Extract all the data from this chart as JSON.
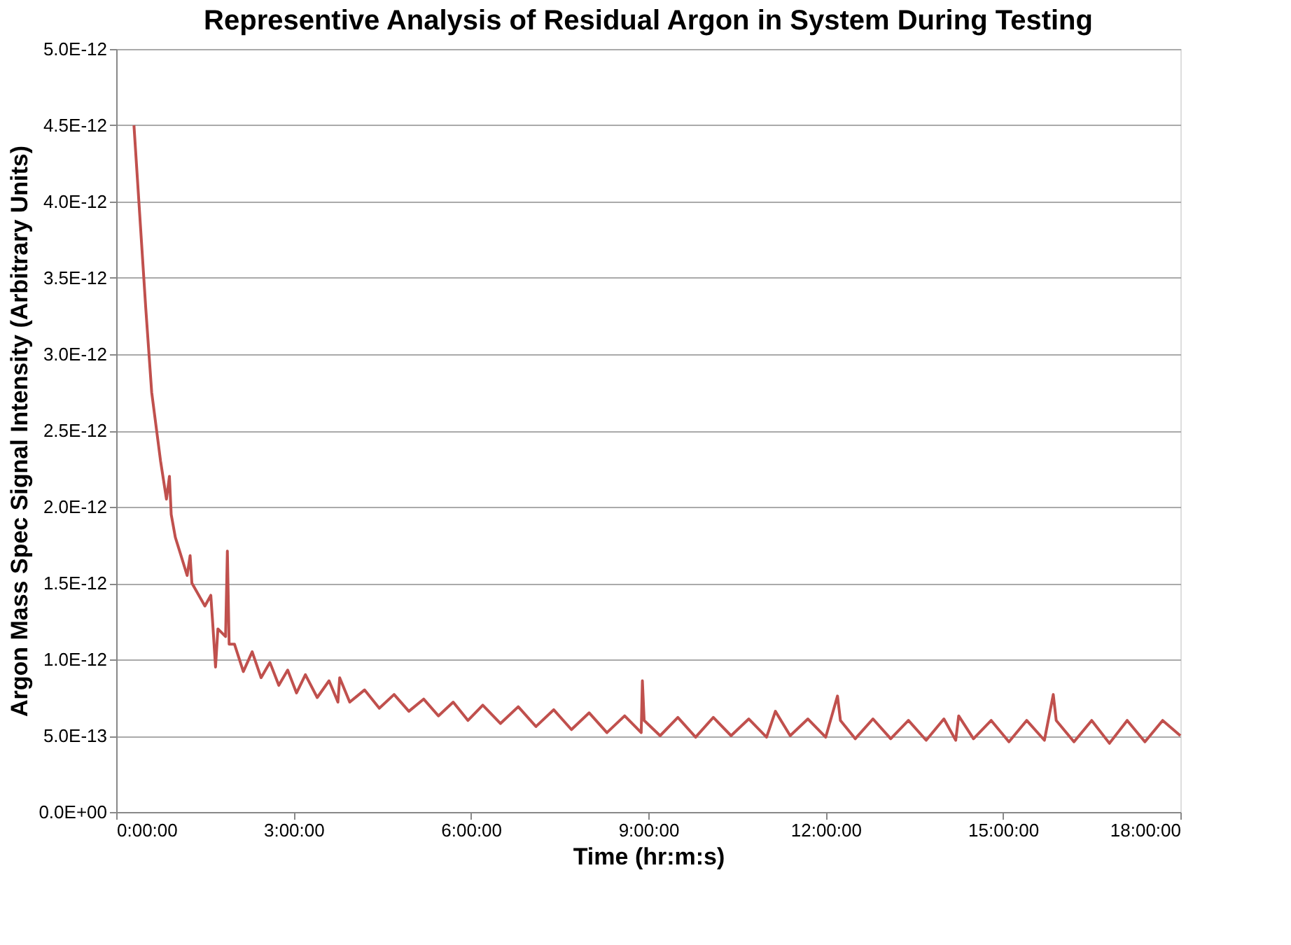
{
  "chart_data": {
    "type": "line",
    "title": "Representive Analysis of Residual Argon in System During Testing",
    "xlabel": "Time (hr:m:s)",
    "ylabel": "Argon Mass Spec Signal Intensity  (Arbitrary Units)",
    "xlim": [
      0,
      18
    ],
    "xticks": [
      {
        "value": 0,
        "label": "0:00:00"
      },
      {
        "value": 3,
        "label": "3:00:00"
      },
      {
        "value": 6,
        "label": "6:00:00"
      },
      {
        "value": 9,
        "label": "9:00:00"
      },
      {
        "value": 12,
        "label": "12:00:00"
      },
      {
        "value": 15,
        "label": "15:00:00"
      },
      {
        "value": 18,
        "label": "18:00:00"
      }
    ],
    "ylim": [
      0,
      5e-12
    ],
    "yticks": [
      {
        "value": 0,
        "label": "0.0E+00"
      },
      {
        "value": 5e-13,
        "label": "5.0E-13"
      },
      {
        "value": 1e-12,
        "label": "1.0E-12"
      },
      {
        "value": 1.5e-12,
        "label": "1.5E-12"
      },
      {
        "value": 2e-12,
        "label": "2.0E-12"
      },
      {
        "value": 2.5e-12,
        "label": "2.5E-12"
      },
      {
        "value": 3e-12,
        "label": "3.0E-12"
      },
      {
        "value": 3.5e-12,
        "label": "3.5E-12"
      },
      {
        "value": 4e-12,
        "label": "4.0E-12"
      },
      {
        "value": 4.5e-12,
        "label": "4.5E-12"
      },
      {
        "value": 5e-12,
        "label": "5.0E-12"
      }
    ],
    "grid": "y",
    "marker": "none",
    "line_style": "solid",
    "x": [
      0.3,
      0.4,
      0.5,
      0.6,
      0.75,
      0.85,
      0.9,
      0.93,
      1.0,
      1.2,
      1.25,
      1.28,
      1.5,
      1.6,
      1.63,
      1.68,
      1.72,
      1.85,
      1.88,
      1.91,
      2.0,
      2.15,
      2.3,
      2.45,
      2.6,
      2.75,
      2.9,
      3.05,
      3.2,
      3.4,
      3.6,
      3.75,
      3.78,
      3.95,
      4.2,
      4.45,
      4.7,
      4.95,
      5.2,
      5.45,
      5.7,
      5.95,
      6.2,
      6.5,
      6.8,
      7.1,
      7.4,
      7.7,
      8.0,
      8.3,
      8.6,
      8.88,
      8.9,
      8.93,
      9.2,
      9.5,
      9.8,
      10.1,
      10.4,
      10.7,
      11.0,
      11.15,
      11.4,
      11.7,
      12.0,
      12.2,
      12.25,
      12.5,
      12.8,
      13.1,
      13.4,
      13.7,
      14.0,
      14.2,
      14.25,
      14.5,
      14.8,
      15.1,
      15.4,
      15.7,
      15.85,
      15.9,
      16.2,
      16.5,
      16.8,
      17.1,
      17.4,
      17.7,
      18.0
    ],
    "series": [
      {
        "color": "#c0504d",
        "values": [
          4.5e-12,
          3.9e-12,
          3.3e-12,
          2.75e-12,
          2.3e-12,
          2.05e-12,
          2.2e-12,
          1.95e-12,
          1.8e-12,
          1.55e-12,
          1.68e-12,
          1.5e-12,
          1.35e-12,
          1.42e-12,
          1.25e-12,
          9.5e-13,
          1.2e-12,
          1.15e-12,
          1.71e-12,
          1.1e-12,
          1.1e-12,
          9.2e-13,
          1.05e-12,
          8.8e-13,
          9.8e-13,
          8.3e-13,
          9.3e-13,
          7.8e-13,
          9e-13,
          7.5e-13,
          8.6e-13,
          7.2e-13,
          8.8e-13,
          7.2e-13,
          8e-13,
          6.8e-13,
          7.7e-13,
          6.6e-13,
          7.4e-13,
          6.3e-13,
          7.2e-13,
          6e-13,
          7e-13,
          5.8e-13,
          6.9e-13,
          5.6e-13,
          6.7e-13,
          5.4e-13,
          6.5e-13,
          5.2e-13,
          6.3e-13,
          5.2e-13,
          8.6e-13,
          6e-13,
          5e-13,
          6.2e-13,
          4.9e-13,
          6.2e-13,
          5e-13,
          6.1e-13,
          4.9e-13,
          6.6e-13,
          5e-13,
          6.1e-13,
          4.9e-13,
          7.6e-13,
          6e-13,
          4.8e-13,
          6.1e-13,
          4.8e-13,
          6e-13,
          4.7e-13,
          6.1e-13,
          4.7e-13,
          6.3e-13,
          4.8e-13,
          6e-13,
          4.6e-13,
          6e-13,
          4.7e-13,
          7.7e-13,
          6e-13,
          4.6e-13,
          6e-13,
          4.5e-13,
          6e-13,
          4.6e-13,
          6e-13,
          5e-13
        ]
      }
    ]
  }
}
